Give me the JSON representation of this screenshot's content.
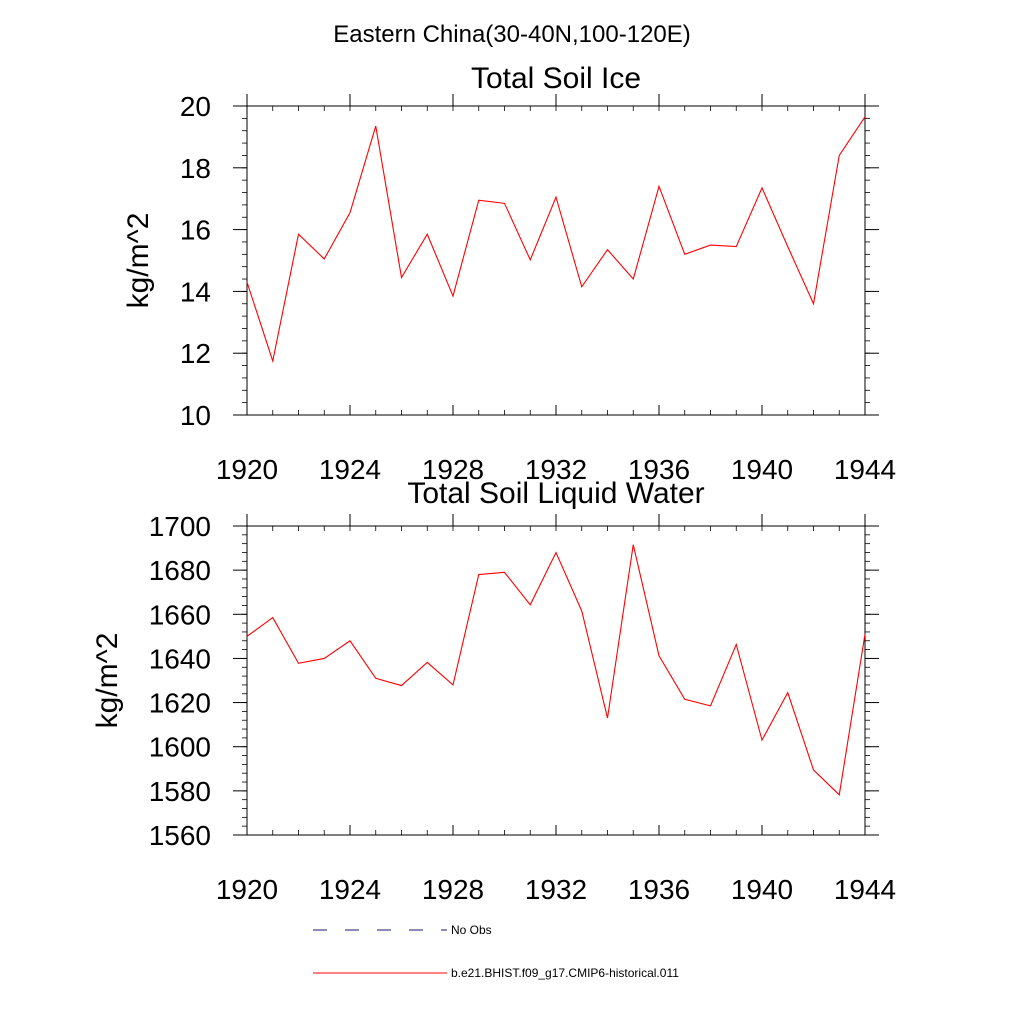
{
  "figure": {
    "title": "Eastern China(30-40N,100-120E)"
  },
  "chart_data": [
    {
      "type": "line",
      "title": "Total Soil Ice",
      "xlabel": "",
      "ylabel": "kg/m^2",
      "xlim": [
        1920,
        1944
      ],
      "ylim": [
        10,
        20
      ],
      "x_ticks": [
        1920,
        1924,
        1928,
        1932,
        1936,
        1940,
        1944
      ],
      "y_ticks": [
        10,
        12,
        14,
        16,
        18,
        20
      ],
      "x_minor_step": 1,
      "y_minor_step": 0.4,
      "grid": false,
      "x": [
        1920,
        1921,
        1922,
        1923,
        1924,
        1925,
        1926,
        1927,
        1928,
        1929,
        1930,
        1931,
        1932,
        1933,
        1934,
        1935,
        1936,
        1937,
        1938,
        1939,
        1940,
        1941,
        1942,
        1943,
        1944
      ],
      "series": [
        {
          "name": "b.e21.BHIST.f09_g17.CMIP6-historical.011",
          "color": "#ff0000",
          "values": [
            14.3,
            11.75,
            15.85,
            15.05,
            16.55,
            19.35,
            14.45,
            15.85,
            13.85,
            16.95,
            16.85,
            15.02,
            17.05,
            14.15,
            15.35,
            14.4,
            17.4,
            15.2,
            15.5,
            15.45,
            17.35,
            15.45,
            13.6,
            18.4,
            19.65
          ]
        }
      ]
    },
    {
      "type": "line",
      "title": "Total Soil Liquid Water",
      "xlabel": "",
      "ylabel": "kg/m^2",
      "xlim": [
        1920,
        1944
      ],
      "ylim": [
        1560,
        1700
      ],
      "x_ticks": [
        1920,
        1924,
        1928,
        1932,
        1936,
        1940,
        1944
      ],
      "y_ticks": [
        1560,
        1580,
        1600,
        1620,
        1640,
        1660,
        1680,
        1700
      ],
      "x_minor_step": 1,
      "y_minor_step": 4,
      "grid": false,
      "x": [
        1920,
        1921,
        1922,
        1923,
        1924,
        1925,
        1926,
        1927,
        1928,
        1929,
        1930,
        1931,
        1932,
        1933,
        1934,
        1935,
        1936,
        1937,
        1938,
        1939,
        1940,
        1941,
        1942,
        1943,
        1944
      ],
      "series": [
        {
          "name": "b.e21.BHIST.f09_g17.CMIP6-historical.011",
          "color": "#ff0000",
          "values": [
            1650,
            1658.5,
            1637.8,
            1640,
            1648,
            1631,
            1627.7,
            1638.2,
            1628,
            1678,
            1679,
            1664.3,
            1688,
            1661.5,
            1613,
            1691.5,
            1641.2,
            1621.5,
            1618.5,
            1646.3,
            1603,
            1624.5,
            1589.5,
            1578.2,
            1651
          ]
        }
      ]
    }
  ],
  "legend": {
    "position": "bottom",
    "items": [
      {
        "label": "No Obs",
        "color": "#1a1a66",
        "dash": true
      },
      {
        "label": "b.e21.BHIST.f09_g17.CMIP6-historical.011",
        "color": "#ff0000",
        "dash": false
      }
    ]
  }
}
